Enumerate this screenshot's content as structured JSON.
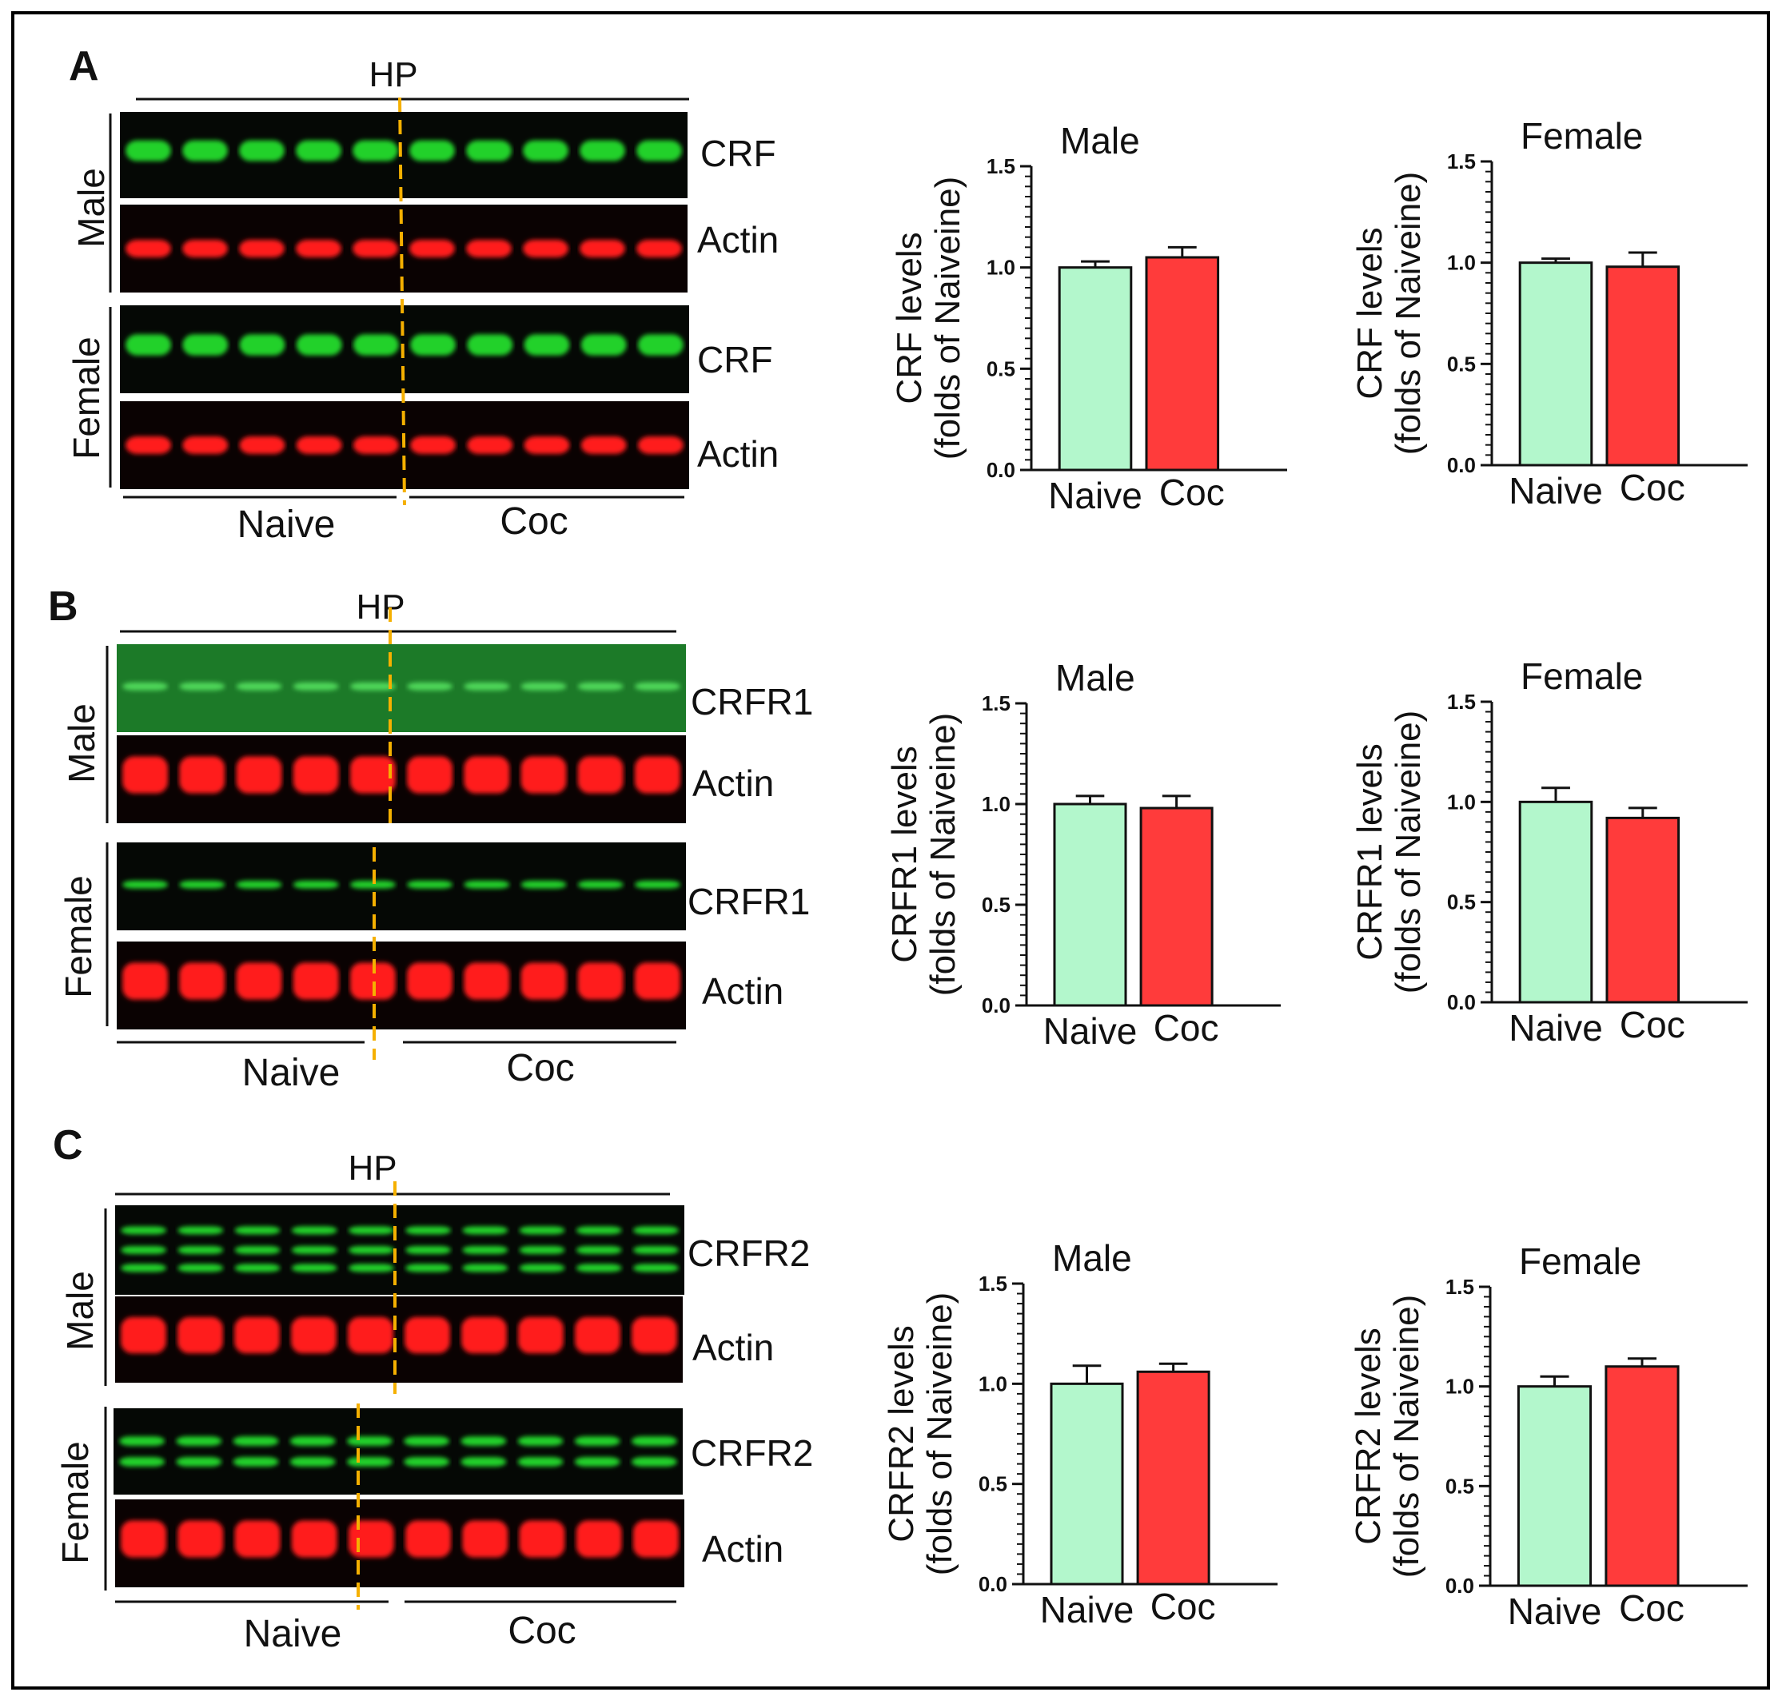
{
  "figure": {
    "tissue_label": "HP",
    "groups": [
      "Naive",
      "Coc"
    ],
    "sexes": [
      "Male",
      "Female"
    ],
    "loading_control": "Actin",
    "colors": {
      "naive_bar": "#b3f7cc",
      "coc_bar": "#ff3b3b",
      "blot_green": "#22d12a",
      "blot_red": "#ff1a1a",
      "divider": "#f5b000"
    }
  },
  "panels": [
    {
      "letter": "A",
      "protein": "CRF",
      "band_style": "single",
      "ylabel_line1": "CRF levels",
      "ylabel_line2": "(folds of Naiveine)"
    },
    {
      "letter": "B",
      "protein": "CRFR1",
      "band_style": "thin",
      "ylabel_line1": "CRFR1 levels",
      "ylabel_line2": "(folds of Naiveine)"
    },
    {
      "letter": "C",
      "protein": "CRFR2",
      "band_style": "multi",
      "ylabel_line1": "CRFR2 levels",
      "ylabel_line2": "(folds of Naiveine)"
    }
  ],
  "chart_data": [
    {
      "type": "bar",
      "panel": "A",
      "title": "Male",
      "categories": [
        "Naive",
        "Coc"
      ],
      "values": [
        1.0,
        1.05
      ],
      "errors": [
        0.03,
        0.05
      ],
      "ylabel": "CRF levels (folds of Naiveine)",
      "ylim": [
        0,
        1.5
      ],
      "yticks": [
        "0.0",
        "0.5",
        "1.0",
        "1.5"
      ]
    },
    {
      "type": "bar",
      "panel": "A",
      "title": "Female",
      "categories": [
        "Naive",
        "Coc"
      ],
      "values": [
        1.0,
        0.98
      ],
      "errors": [
        0.02,
        0.07
      ],
      "ylabel": "CRF levels (folds of Naiveine)",
      "ylim": [
        0,
        1.5
      ],
      "yticks": [
        "0.0",
        "0.5",
        "1.0",
        "1.5"
      ]
    },
    {
      "type": "bar",
      "panel": "B",
      "title": "Male",
      "categories": [
        "Naive",
        "Coc"
      ],
      "values": [
        1.0,
        0.98
      ],
      "errors": [
        0.04,
        0.06
      ],
      "ylabel": "CRFR1 levels (folds of Naiveine)",
      "ylim": [
        0,
        1.5
      ],
      "yticks": [
        "0.0",
        "0.5",
        "1.0",
        "1.5"
      ]
    },
    {
      "type": "bar",
      "panel": "B",
      "title": "Female",
      "categories": [
        "Naive",
        "Coc"
      ],
      "values": [
        1.0,
        0.92
      ],
      "errors": [
        0.07,
        0.05
      ],
      "ylabel": "CRFR1 levels (folds of Naiveine)",
      "ylim": [
        0,
        1.5
      ],
      "yticks": [
        "0.0",
        "0.5",
        "1.0",
        "1.5"
      ]
    },
    {
      "type": "bar",
      "panel": "C",
      "title": "Male",
      "categories": [
        "Naive",
        "Coc"
      ],
      "values": [
        1.0,
        1.06
      ],
      "errors": [
        0.09,
        0.04
      ],
      "ylabel": "CRFR2 levels (folds of Naiveine)",
      "ylim": [
        0,
        1.5
      ],
      "yticks": [
        "0.0",
        "0.5",
        "1.0",
        "1.5"
      ]
    },
    {
      "type": "bar",
      "panel": "C",
      "title": "Female",
      "categories": [
        "Naive",
        "Coc"
      ],
      "values": [
        1.0,
        1.1
      ],
      "errors": [
        0.05,
        0.04
      ],
      "ylabel": "CRFR2 levels (folds of Naiveine)",
      "ylim": [
        0,
        1.5
      ],
      "yticks": [
        "0.0",
        "0.5",
        "1.0",
        "1.5"
      ]
    }
  ]
}
